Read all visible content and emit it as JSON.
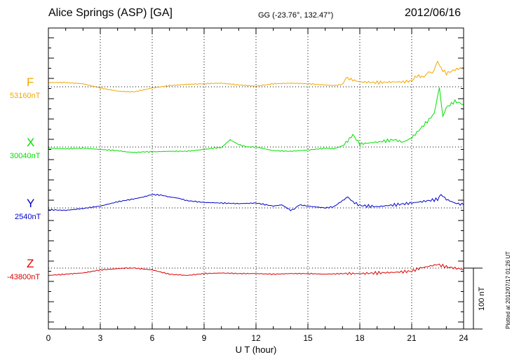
{
  "header": {
    "title": "Alice Springs (ASP)  [GA]",
    "coords": "GG (-23.76°, 132.47°)",
    "date": "2012/06/16"
  },
  "footer": {
    "plotted": "Plotted at 2012/07/17 01:26 UT"
  },
  "colors": {
    "F": "#f0a800",
    "X": "#00e000",
    "Y": "#0000cc",
    "Z": "#dd0000"
  },
  "chart_data": {
    "type": "line",
    "title": "Alice Springs (ASP)  [GA]",
    "xlabel": "U T (hour)",
    "xlim": [
      0,
      24
    ],
    "xticks": [
      "0",
      "3",
      "6",
      "9",
      "12",
      "15",
      "18",
      "21",
      "24"
    ],
    "grid": true,
    "scale_bar": "100 nT",
    "series": [
      {
        "name": "F",
        "baseline_label": "53160nT",
        "baseline": 53160,
        "x": [
          0,
          1,
          2,
          3,
          4,
          4.5,
          5,
          5.5,
          6,
          7,
          8,
          9,
          10,
          11,
          12,
          13,
          14,
          15,
          16,
          16.5,
          17,
          17.2,
          17.5,
          18,
          19,
          20,
          20.5,
          21,
          21.3,
          21.7,
          22,
          22.2,
          22.5,
          22.7,
          23,
          23.5,
          24
        ],
        "values": [
          7,
          7,
          5,
          -2,
          -7,
          -8,
          -8,
          -5,
          -2,
          2,
          4,
          5,
          6,
          3,
          1,
          5,
          6,
          5,
          3,
          2,
          4,
          15,
          12,
          8,
          7,
          8,
          8,
          10,
          18,
          16,
          25,
          22,
          42,
          30,
          22,
          28,
          32
        ]
      },
      {
        "name": "X",
        "baseline_label": "30040nT",
        "baseline": 30040,
        "x": [
          0,
          1,
          2,
          3,
          4,
          4.5,
          5,
          5.5,
          6,
          7,
          8,
          9,
          9.5,
          10,
          10.5,
          11,
          11.5,
          12,
          12.5,
          13,
          14,
          15,
          16,
          16.5,
          17,
          17.3,
          17.6,
          18,
          19,
          20,
          20.5,
          21,
          21.5,
          22,
          22.3,
          22.6,
          22.8,
          23,
          23.5,
          24
        ],
        "values": [
          -2,
          -3,
          -2,
          -4,
          -6,
          -8,
          -9,
          -8,
          -8,
          -7,
          -7,
          -4,
          -2,
          -1,
          12,
          4,
          0,
          0,
          -3,
          -6,
          -7,
          -5,
          -2,
          -3,
          2,
          10,
          20,
          5,
          8,
          12,
          8,
          15,
          30,
          45,
          55,
          98,
          50,
          65,
          75,
          70
        ]
      },
      {
        "name": "Y",
        "baseline_label": "2540nT",
        "baseline": 2540,
        "x": [
          0,
          1,
          2,
          3,
          4,
          5,
          5.5,
          6,
          6.5,
          7,
          7.5,
          8,
          9,
          10,
          11,
          12,
          13,
          13.5,
          14,
          14.2,
          14.5,
          15,
          16,
          16.5,
          17,
          17.3,
          17.6,
          18,
          19,
          20,
          21,
          21.5,
          22,
          22.5,
          22.7,
          23,
          23.5,
          24
        ],
        "values": [
          -3,
          -4,
          -1,
          3,
          10,
          15,
          18,
          22,
          21,
          18,
          16,
          12,
          9,
          8,
          7,
          8,
          3,
          5,
          -4,
          -2,
          5,
          3,
          0,
          2,
          12,
          18,
          10,
          4,
          2,
          5,
          8,
          10,
          12,
          14,
          22,
          14,
          8,
          5
        ]
      },
      {
        "name": "Z",
        "baseline_label": "-43800nT",
        "baseline": -43800,
        "x": [
          0,
          1,
          2,
          3,
          4,
          4.5,
          5,
          6,
          7,
          8,
          9,
          10,
          11,
          12,
          13,
          14,
          15,
          16,
          17,
          18,
          19,
          20,
          21,
          21.5,
          22,
          22.5,
          23,
          23.5,
          24
        ],
        "values": [
          -12,
          -10,
          -8,
          -3,
          -1,
          0,
          0,
          -3,
          -10,
          -12,
          -9,
          -8,
          -9,
          -9,
          -10,
          -9,
          -9,
          -10,
          -9,
          -9,
          -8,
          -7,
          -5,
          0,
          3,
          6,
          2,
          0,
          -2
        ]
      }
    ]
  }
}
